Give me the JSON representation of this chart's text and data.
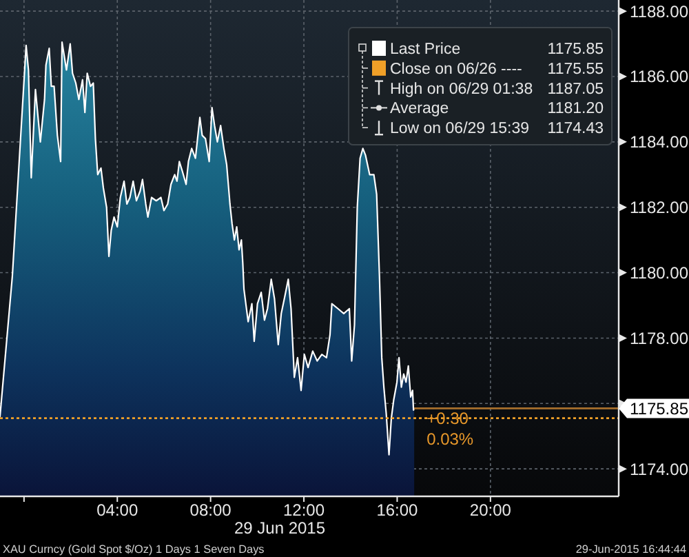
{
  "chart_data": {
    "type": "area",
    "xlabel": "29 Jun 2015",
    "xlim": [
      -1.03,
      25.5
    ],
    "ylim": [
      1173.16,
      1188.34
    ],
    "xticks": [
      {
        "value": 0,
        "label": null
      },
      {
        "value": 4,
        "label": "04:00"
      },
      {
        "value": 8,
        "label": "08:00"
      },
      {
        "value": 12,
        "label": "12:00"
      },
      {
        "value": 16,
        "label": "16:00"
      },
      {
        "value": 20,
        "label": "20:00"
      }
    ],
    "yticks": [
      {
        "value": 1174,
        "label": "1174.00"
      },
      {
        "value": 1176,
        "label": null
      },
      {
        "value": 1178,
        "label": "1178.00"
      },
      {
        "value": 1180,
        "label": "1180.00"
      },
      {
        "value": 1182,
        "label": "1182.00"
      },
      {
        "value": 1184,
        "label": "1184.00"
      },
      {
        "value": 1186,
        "label": "1186.00"
      },
      {
        "value": 1188,
        "label": "1188.00"
      }
    ],
    "grid": true,
    "legend": "top right",
    "x": [
      -1.03,
      -0.5,
      0.09,
      0.19,
      0.31,
      0.49,
      0.7,
      0.88,
      0.94,
      1.08,
      1.17,
      1.29,
      1.43,
      1.57,
      1.63,
      1.82,
      1.98,
      2.08,
      2.22,
      2.35,
      2.51,
      2.61,
      2.71,
      2.85,
      2.97,
      3.06,
      3.16,
      3.3,
      3.4,
      3.54,
      3.64,
      3.74,
      3.86,
      4.0,
      4.13,
      4.29,
      4.41,
      4.54,
      4.68,
      4.82,
      4.98,
      5.08,
      5.22,
      5.31,
      5.47,
      5.67,
      5.87,
      6.0,
      6.16,
      6.3,
      6.46,
      6.56,
      6.66,
      6.79,
      6.95,
      7.05,
      7.19,
      7.35,
      7.44,
      7.54,
      7.64,
      7.78,
      7.94,
      8.06,
      8.17,
      8.29,
      8.43,
      8.57,
      8.69,
      8.83,
      8.92,
      9.02,
      9.12,
      9.22,
      9.32,
      9.38,
      9.43,
      9.61,
      9.77,
      9.87,
      10.01,
      10.17,
      10.31,
      10.44,
      10.6,
      10.74,
      10.9,
      11.03,
      11.19,
      11.33,
      11.45,
      11.59,
      11.73,
      11.88,
      12.02,
      12.18,
      12.38,
      12.57,
      12.77,
      12.97,
      13.12,
      13.2,
      13.46,
      13.71,
      13.95,
      14.05,
      14.17,
      14.29,
      14.41,
      14.53,
      14.64,
      14.82,
      15.0,
      15.12,
      15.24,
      15.34,
      15.43,
      15.53,
      15.65,
      15.75,
      15.85,
      15.99,
      16.08,
      16.18,
      16.28,
      16.38,
      16.48,
      16.58,
      16.66,
      16.7,
      16.73
    ],
    "series": [
      {
        "name": "Last Price",
        "color": "#ffffff",
        "values": [
          1175.6,
          1179.9,
          1186.95,
          1186.2,
          1182.9,
          1185.6,
          1184.0,
          1185.3,
          1186.35,
          1186.86,
          1185.7,
          1185.7,
          1184.2,
          1183.4,
          1187.05,
          1186.2,
          1187.0,
          1186.1,
          1185.8,
          1185.3,
          1185.9,
          1184.9,
          1186.1,
          1185.7,
          1185.8,
          1184.1,
          1183.0,
          1183.2,
          1182.6,
          1182.0,
          1180.5,
          1181.3,
          1181.7,
          1181.4,
          1182.3,
          1182.8,
          1182.1,
          1182.3,
          1182.8,
          1182.2,
          1182.5,
          1182.85,
          1182.1,
          1181.7,
          1182.3,
          1182.2,
          1182.3,
          1181.9,
          1182.1,
          1182.7,
          1183.0,
          1182.8,
          1183.4,
          1183.1,
          1182.7,
          1183.4,
          1183.8,
          1183.5,
          1184.1,
          1184.75,
          1184.2,
          1184.1,
          1183.4,
          1185.05,
          1184.5,
          1184.0,
          1184.5,
          1183.8,
          1183.3,
          1182.1,
          1181.5,
          1181.0,
          1181.4,
          1180.7,
          1181.0,
          1180.3,
          1179.5,
          1178.5,
          1179.05,
          1177.9,
          1179.05,
          1179.4,
          1178.55,
          1178.9,
          1179.8,
          1179.2,
          1177.8,
          1178.75,
          1179.3,
          1179.8,
          1178.9,
          1176.8,
          1177.4,
          1176.4,
          1177.5,
          1177.1,
          1177.6,
          1177.3,
          1177.5,
          1177.4,
          1178.1,
          1179.05,
          1178.9,
          1178.75,
          1178.9,
          1177.3,
          1178.4,
          1182.0,
          1183.5,
          1183.8,
          1183.6,
          1183.0,
          1183.0,
          1182.4,
          1179.9,
          1177.4,
          1176.5,
          1175.7,
          1174.43,
          1175.55,
          1176.1,
          1176.65,
          1177.4,
          1176.5,
          1176.9,
          1176.65,
          1177.15,
          1176.2,
          1176.4,
          1175.8,
          1175.85
        ]
      }
    ],
    "ref_lines": [
      {
        "axis": "y",
        "value": 1175.55,
        "label": "Close on 06/26 ----",
        "color": "#f0a028",
        "line_style": "dotted"
      },
      {
        "axis": "y",
        "value": 1175.85,
        "label": "1175.85",
        "color": "#a8702c",
        "line_style": "solid"
      }
    ],
    "annotations": [
      "1175.85",
      "1175.55",
      "High on 06/29 01:38",
      "1187.05",
      "Average",
      "1181.20",
      "Low on 06/29 15:39",
      "1174.43",
      "+0.30",
      "0.03%",
      "XAU Curncy (Gold Spot  $/Oz) 1 Days 1 Seven Days",
      "29-Jun-2015 16:44:44"
    ]
  }
}
